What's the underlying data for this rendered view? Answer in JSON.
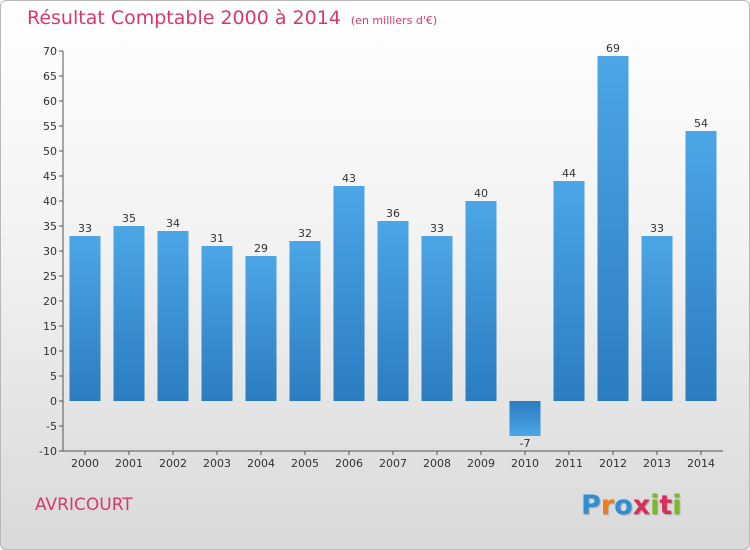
{
  "chart_data": {
    "type": "bar",
    "title": "Résultat Comptable 2000 à 2014",
    "unit": "(en milliers d'€)",
    "categories": [
      "2000",
      "2001",
      "2002",
      "2003",
      "2004",
      "2005",
      "2006",
      "2007",
      "2008",
      "2009",
      "2010",
      "2011",
      "2012",
      "2013",
      "2014"
    ],
    "values": [
      33,
      35,
      34,
      31,
      29,
      32,
      43,
      36,
      33,
      40,
      -7,
      44,
      69,
      33,
      54
    ],
    "labels": [
      "33",
      "35",
      "34",
      "31",
      "29",
      "32",
      "43",
      "36",
      "33",
      "40",
      "-7",
      "44",
      "69",
      "33",
      "54"
    ],
    "ylim": [
      -10,
      70
    ],
    "yticks": [
      -10,
      -5,
      0,
      5,
      10,
      15,
      20,
      25,
      30,
      35,
      40,
      45,
      50,
      55,
      60,
      65,
      70
    ],
    "grid": false,
    "bar_color": "#4ca6e6",
    "bar_color_dark": "#2b7cc0"
  },
  "footer": {
    "commune": "AVRICOURT",
    "logo_letters": [
      "P",
      "r",
      "o",
      "x",
      "i",
      "t",
      "i"
    ],
    "logo_colors": [
      "#2f8fd6",
      "#f07d1a",
      "#2f8fd6",
      "#d62f5a",
      "#7ab62e",
      "#d62f5a",
      "#7ab62e"
    ]
  },
  "colors": {
    "accent": "#d63a6b",
    "axis": "#555555"
  }
}
